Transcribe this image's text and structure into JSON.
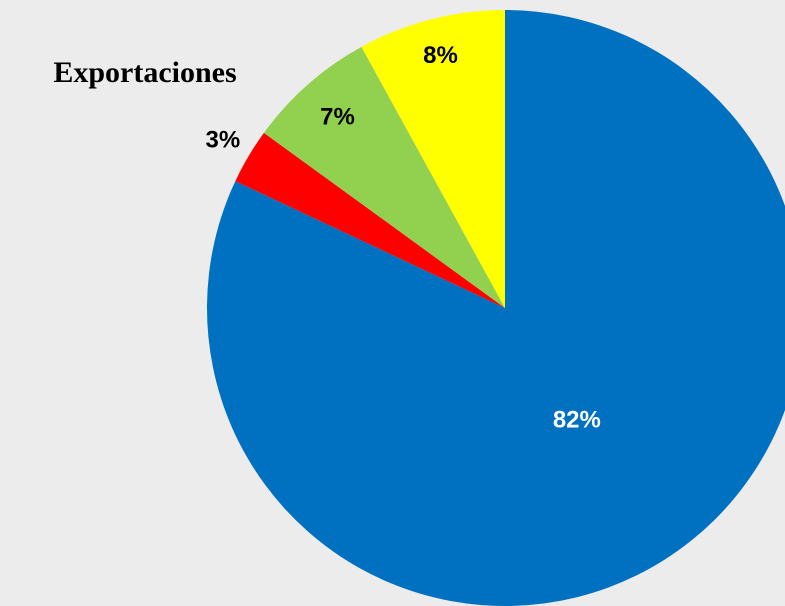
{
  "chart_data": {
    "type": "pie",
    "title": "Exportaciones",
    "values": [
      82,
      3,
      7,
      8
    ],
    "value_labels": [
      "82%",
      "3%",
      "7%",
      "8%"
    ],
    "colors": [
      "#0070c0",
      "#ff0000",
      "#92d050",
      "#ffff00"
    ]
  }
}
